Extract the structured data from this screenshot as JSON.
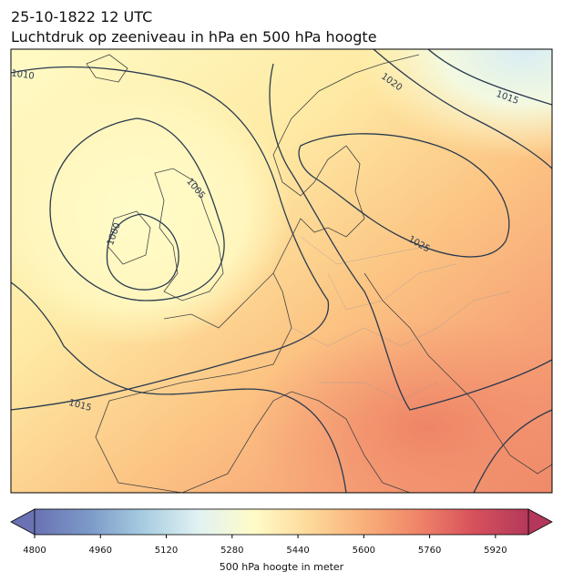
{
  "header": {
    "title_line1": "25-10-1822 12 UTC",
    "title_line2": "Luchtdruk op zeeniveau in hPa en 500 hPa hoogte"
  },
  "map": {
    "contour_labels": [
      "1010",
      "1020",
      "1015",
      "1005",
      "1000",
      "1025",
      "1015"
    ]
  },
  "colorbar": {
    "lim": [
      4800,
      6000
    ],
    "ticks": [
      4800,
      4960,
      5120,
      5280,
      5440,
      5600,
      5760,
      5920
    ],
    "label": "500 hPa hoogte in meter"
  }
}
